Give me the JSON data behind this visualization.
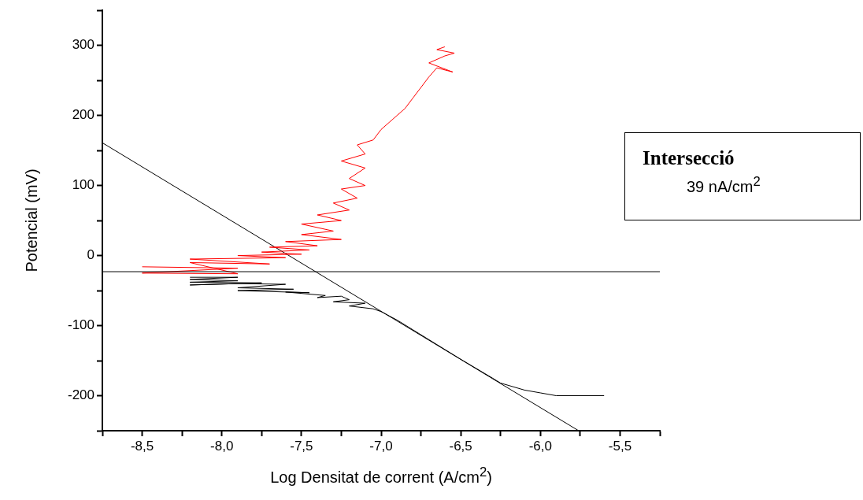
{
  "chart_data": {
    "type": "line",
    "xlabel": "Log Densitat de corrent (A/cm$^{2}$)",
    "ylabel": "Potencial (mV)",
    "annotations": [
      "Intersecció",
      "39 nA/cm$^{2}$"
    ],
    "xlim": [
      -8.75,
      -5.25
    ],
    "xticks": [
      {
        "value": -8.75,
        "label": null
      },
      {
        "value": -8.5,
        "label": "-8,5"
      },
      {
        "value": -8.25,
        "label": null
      },
      {
        "value": -8,
        "label": "-8,0"
      },
      {
        "value": -7.75,
        "label": null
      },
      {
        "value": -7.5,
        "label": "-7,5"
      },
      {
        "value": -7.25,
        "label": null
      },
      {
        "value": -7,
        "label": "-7,0"
      },
      {
        "value": -6.75,
        "label": null
      },
      {
        "value": -6.5,
        "label": "-6,5"
      },
      {
        "value": -6.25,
        "label": null
      },
      {
        "value": -6,
        "label": "-6,0"
      },
      {
        "value": -5.75,
        "label": null
      },
      {
        "value": -5.5,
        "label": "-5,5"
      },
      {
        "value": -5.25,
        "label": null
      }
    ],
    "ylim": [
      -250,
      350
    ],
    "yticks": [
      {
        "value": -250,
        "label": null
      },
      -200,
      {
        "value": -150,
        "label": null
      },
      -100,
      {
        "value": -50,
        "label": null
      },
      0,
      {
        "value": 50,
        "label": null
      },
      100,
      {
        "value": 150,
        "label": null
      },
      200,
      {
        "value": 250,
        "label": null
      },
      300,
      {
        "value": 350,
        "label": null
      }
    ],
    "grid": false,
    "legend": false,
    "marker": "none",
    "line_style": "solid",
    "ref_lines": [
      {
        "axis": "y",
        "value": -23,
        "color": "#000000"
      }
    ],
    "series": [
      {
        "color": "#ff0000",
        "x": [
          -8.5,
          -7.9,
          -8.5,
          -7.9,
          -8.2,
          -7.7,
          -8.2,
          -7.6,
          -7.9,
          -7.5,
          -7.75,
          -7.45,
          -7.7,
          -7.4,
          -7.6,
          -7.25,
          -7.5,
          -7.3,
          -7.5,
          -7.25,
          -7.4,
          -7.2,
          -7.3,
          -7.15,
          -7.25,
          -7.1,
          -7.2,
          -7.1,
          -7.25,
          -7.1,
          -7.15,
          -7.05,
          -7.0,
          -6.95,
          -6.9,
          -6.85,
          -6.8,
          -6.75,
          -6.7,
          -6.65,
          -6.55,
          -6.7,
          -6.6,
          -6.54,
          -6.65,
          -6.6
        ],
        "values": [
          -16,
          -18,
          -25,
          -26,
          -10,
          -12,
          -5,
          -3,
          0,
          2,
          5,
          8,
          12,
          14,
          20,
          23,
          30,
          35,
          45,
          50,
          58,
          65,
          75,
          82,
          95,
          100,
          110,
          125,
          135,
          145,
          158,
          165,
          180,
          190,
          200,
          210,
          225,
          240,
          255,
          268,
          262,
          275,
          285,
          289,
          294,
          298
        ]
      },
      {
        "color": "#000000",
        "x": [
          -8.2,
          -7.9,
          -8.2,
          -7.9,
          -8.2,
          -7.75,
          -8.2,
          -7.9,
          -7.6,
          -7.9,
          -7.55,
          -7.9,
          -7.45,
          -7.6,
          -7.35,
          -7.4,
          -7.25,
          -7.2,
          -7.3,
          -7.1,
          -7.2,
          -7.05,
          -7.0,
          -6.9,
          -6.7,
          -6.5,
          -6.3,
          -6.25,
          -6.1,
          -6.0,
          -5.9,
          -5.6
        ],
        "values": [
          -31,
          -31,
          -34,
          -36,
          -38,
          -39,
          -42,
          -40,
          -41,
          -46,
          -48,
          -50,
          -53,
          -52,
          -57,
          -60,
          -58,
          -63,
          -66,
          -68,
          -72,
          -76,
          -80,
          -92,
          -120,
          -148,
          -175,
          -182,
          -192,
          -196,
          -200,
          -200
        ]
      },
      {
        "type": "line",
        "color": "#000000",
        "x": [
          -8.75,
          -5.76
        ],
        "values": [
          161,
          -250
        ]
      }
    ]
  }
}
